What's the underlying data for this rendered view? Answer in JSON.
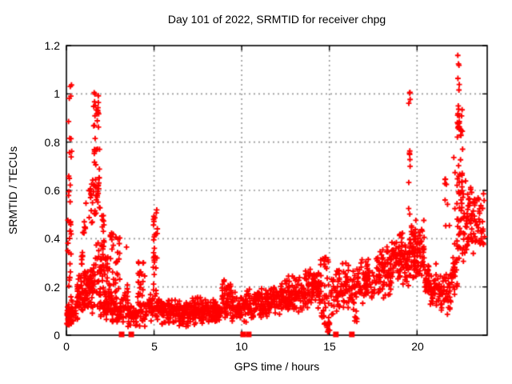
{
  "chart_data": {
    "type": "scatter",
    "title": "Day 101 of 2022, SRMTID for receiver chpg",
    "xlabel": "GPS time / hours",
    "ylabel": "SRMTID / TECUs",
    "xlim": [
      0,
      24
    ],
    "ylim": [
      0,
      1.2
    ],
    "xticks": [
      0,
      5,
      10,
      15,
      20
    ],
    "yticks": [
      0,
      0.2,
      0.4,
      0.6,
      0.8,
      1,
      1.2
    ],
    "xtick_labels": [
      "0",
      "5",
      "10",
      "15",
      "20"
    ],
    "ytick_labels": [
      "0",
      "0.2",
      "0.4",
      "0.6",
      "0.8",
      "1",
      "1.2"
    ],
    "grid": true,
    "grid_color": "#999999",
    "marker_color": "#ff0000",
    "axis_color": "#000000",
    "series": [
      {
        "name": "srmtid-plus-markers",
        "marker": "plus",
        "color": "#ff0000",
        "clusters": [
          [
            0.02,
            0.3,
            0.02,
            0.13,
            55,
            "m"
          ],
          [
            0.05,
            0.3,
            0.13,
            0.48,
            22,
            "u"
          ],
          [
            0.1,
            0.32,
            0.5,
            1.05,
            16,
            "u"
          ],
          [
            0.3,
            0.65,
            0.04,
            0.16,
            18,
            "m"
          ],
          [
            0.6,
            1.05,
            0.07,
            0.26,
            45,
            "m"
          ],
          [
            0.85,
            0.95,
            0.27,
            0.43,
            8,
            "u"
          ],
          [
            1.0,
            1.12,
            0.3,
            0.55,
            7,
            "u"
          ],
          [
            1.0,
            1.55,
            0.08,
            0.3,
            60,
            "m"
          ],
          [
            1.3,
            1.5,
            0.45,
            0.63,
            12,
            "u"
          ],
          [
            1.5,
            1.95,
            0.5,
            0.66,
            26,
            "u"
          ],
          [
            1.55,
            1.9,
            0.66,
            0.86,
            10,
            "u"
          ],
          [
            1.55,
            1.85,
            0.86,
            1.01,
            18,
            "u"
          ],
          [
            1.5,
            2.1,
            0.05,
            0.45,
            55,
            "m"
          ],
          [
            2.0,
            2.2,
            0.25,
            0.5,
            15,
            "u"
          ],
          [
            2.2,
            2.45,
            0.15,
            0.35,
            15,
            "u"
          ],
          [
            2.1,
            2.6,
            0.04,
            0.2,
            45,
            "m"
          ],
          [
            2.45,
            2.7,
            0.2,
            0.44,
            14,
            "u"
          ],
          [
            2.75,
            3.05,
            0.15,
            0.42,
            20,
            "u"
          ],
          [
            2.6,
            3.25,
            0.03,
            0.18,
            50,
            "m"
          ],
          [
            3.25,
            3.55,
            0.05,
            0.25,
            18,
            "m"
          ],
          [
            3.4,
            3.45,
            0.36,
            0.38,
            1,
            "u"
          ],
          [
            3.5,
            4.05,
            0.02,
            0.13,
            40,
            "m"
          ],
          [
            4.05,
            4.5,
            0.12,
            0.31,
            28,
            "u"
          ],
          [
            4.05,
            4.5,
            0.03,
            0.12,
            15,
            "m"
          ],
          [
            4.5,
            4.95,
            0.05,
            0.19,
            30,
            "m"
          ],
          [
            4.95,
            5.2,
            0.17,
            0.53,
            28,
            "u"
          ],
          [
            4.95,
            5.35,
            0.06,
            0.17,
            22,
            "m"
          ],
          [
            5.35,
            6.1,
            0.04,
            0.16,
            65,
            "m"
          ],
          [
            6.1,
            7.1,
            0.03,
            0.15,
            90,
            "m"
          ],
          [
            7.1,
            8.1,
            0.04,
            0.16,
            90,
            "m"
          ],
          [
            8.1,
            8.85,
            0.04,
            0.15,
            70,
            "m"
          ],
          [
            8.85,
            9.4,
            0.06,
            0.26,
            48,
            "m"
          ],
          [
            9.4,
            10.15,
            0.05,
            0.18,
            55,
            "m"
          ],
          [
            10.15,
            10.65,
            0.05,
            0.2,
            38,
            "m"
          ],
          [
            10.65,
            11.55,
            0.07,
            0.21,
            70,
            "m"
          ],
          [
            11.55,
            12.55,
            0.08,
            0.23,
            80,
            "m"
          ],
          [
            12.55,
            13.55,
            0.09,
            0.26,
            80,
            "m"
          ],
          [
            13.55,
            14.5,
            0.1,
            0.29,
            80,
            "m"
          ],
          [
            14.5,
            15.0,
            0.02,
            0.33,
            40,
            "u"
          ],
          [
            14.9,
            15.05,
            0.0,
            0.1,
            8,
            "u"
          ],
          [
            15.05,
            15.65,
            0.08,
            0.29,
            40,
            "m"
          ],
          [
            15.65,
            16.55,
            0.09,
            0.31,
            60,
            "m"
          ],
          [
            16.4,
            16.6,
            0.03,
            0.1,
            6,
            "u"
          ],
          [
            16.55,
            17.55,
            0.12,
            0.33,
            70,
            "m"
          ],
          [
            17.55,
            18.55,
            0.14,
            0.38,
            80,
            "m"
          ],
          [
            18.55,
            19.55,
            0.2,
            0.43,
            90,
            "m"
          ],
          [
            19.5,
            19.62,
            0.5,
            1.01,
            12,
            "u"
          ],
          [
            19.55,
            20.45,
            0.22,
            0.48,
            95,
            "m"
          ],
          [
            20.45,
            21.15,
            0.1,
            0.31,
            65,
            "m"
          ],
          [
            21.15,
            21.95,
            0.07,
            0.29,
            55,
            "m"
          ],
          [
            21.55,
            22.2,
            0.33,
            0.8,
            12,
            "u"
          ],
          [
            21.95,
            22.3,
            0.14,
            0.4,
            25,
            "m"
          ],
          [
            22.25,
            22.65,
            0.3,
            0.67,
            45,
            "u"
          ],
          [
            22.3,
            22.6,
            0.67,
            0.95,
            16,
            "u"
          ],
          [
            22.3,
            22.45,
            0.85,
            0.92,
            10,
            "u"
          ],
          [
            22.32,
            22.42,
            1.0,
            1.16,
            6,
            "u"
          ],
          [
            22.6,
            23.15,
            0.3,
            0.66,
            45,
            "m"
          ],
          [
            23.15,
            23.85,
            0.33,
            0.63,
            45,
            "m"
          ]
        ]
      },
      {
        "name": "flagged-zero-squares",
        "marker": "filled-square",
        "color": "#ff0000",
        "points": [
          [
            3.15,
            0
          ],
          [
            3.7,
            0
          ],
          [
            10.08,
            0
          ],
          [
            10.4,
            0
          ],
          [
            15.37,
            0
          ],
          [
            16.28,
            0
          ]
        ]
      }
    ]
  }
}
